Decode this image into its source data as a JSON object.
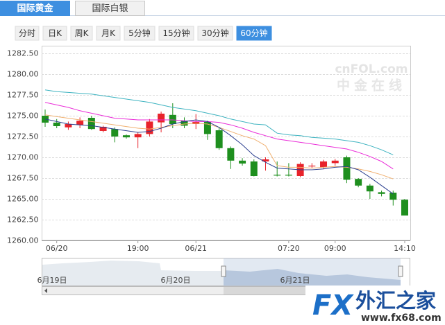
{
  "tabs": [
    {
      "label": "国际黄金",
      "active": true
    },
    {
      "label": "国际白银",
      "active": false
    }
  ],
  "periods": {
    "items": [
      "分时",
      "日K",
      "周K",
      "月K",
      "5分钟",
      "15分钟",
      "30分钟",
      "60分钟"
    ],
    "active": 7
  },
  "chart_data": {
    "type": "candlestick",
    "categories": [
      null,
      "06/20",
      null,
      null,
      null,
      null,
      null,
      null,
      "19:00",
      null,
      null,
      null,
      null,
      "06/21",
      null,
      null,
      null,
      null,
      null,
      null,
      null,
      "07:20",
      null,
      null,
      null,
      "09:00",
      null,
      null,
      null,
      null,
      null,
      "14:10"
    ],
    "open": [
      1275.0,
      1274.17,
      1273.6,
      1273.9,
      1274.75,
      1273.17,
      1273.4,
      1272.65,
      1272.4,
      1272.8,
      1274.2,
      1275.1,
      1274.4,
      1274.0,
      1274.25,
      1273.25,
      1271.1,
      1269.6,
      1269.5,
      1269.5,
      1267.9,
      1267.9,
      1267.75,
      1268.9,
      1268.8,
      1269.3,
      1270.0,
      1267.4,
      1266.6,
      1265.8,
      1265.75,
      1264.9
    ],
    "high": [
      1275.75,
      1274.6,
      1274.3,
      1274.8,
      1275.0,
      1273.8,
      1273.6,
      1272.75,
      1273.0,
      1274.6,
      1275.5,
      1276.5,
      1274.8,
      1275.2,
      1274.4,
      1273.6,
      1271.3,
      1269.9,
      1269.75,
      1270.0,
      1269.5,
      1269.3,
      1269.4,
      1269.3,
      1269.7,
      1269.8,
      1270.2,
      1267.5,
      1266.8,
      1266.0,
      1266.0,
      1265.0
    ],
    "low": [
      1273.67,
      1273.5,
      1273.3,
      1273.5,
      1273.3,
      1273.0,
      1271.8,
      1272.25,
      1271.1,
      1272.5,
      1273.0,
      1273.5,
      1273.5,
      1273.4,
      1272.1,
      1270.9,
      1268.6,
      1269.0,
      1267.7,
      1268.4,
      1267.7,
      1267.7,
      1267.6,
      1268.7,
      1268.6,
      1269.0,
      1266.9,
      1266.4,
      1265.0,
      1265.3,
      1264.2,
      1263.0
    ],
    "close": [
      1274.17,
      1273.75,
      1274.0,
      1274.4,
      1273.4,
      1273.67,
      1272.5,
      1272.4,
      1272.8,
      1274.3,
      1275.25,
      1274.0,
      1273.8,
      1274.25,
      1272.8,
      1271.1,
      1269.6,
      1269.25,
      1267.75,
      1269.75,
      1267.8,
      1267.8,
      1269.2,
      1269.0,
      1269.5,
      1269.6,
      1267.3,
      1266.6,
      1265.9,
      1265.6,
      1264.9,
      1263.0
    ],
    "up_color": "#e8232b",
    "down_color": "#1e8f1e",
    "lines": [
      {
        "color": "#3db3c0",
        "values": [
          1278.1,
          1277.9,
          1277.8,
          1277.7,
          1277.6,
          1277.4,
          1277.2,
          1277.0,
          1276.8,
          1276.6,
          1276.3,
          1276.0,
          1275.8,
          1275.6,
          1275.3,
          1275.0,
          1274.6,
          1274.3,
          1274.0,
          1273.9,
          1272.9,
          1272.7,
          1272.6,
          1272.4,
          1272.3,
          1272.2,
          1272.0,
          1271.8,
          1271.4,
          1270.9,
          1270.3,
          null
        ]
      },
      {
        "color": "#ea2bd8",
        "values": [
          1276.6,
          1276.3,
          1276.0,
          1275.6,
          1275.3,
          1275.0,
          1274.7,
          1274.6,
          1274.5,
          1274.5,
          1274.5,
          1274.5,
          1274.4,
          1274.3,
          1274.3,
          1274.2,
          1273.9,
          1273.5,
          1273.0,
          1272.6,
          1272.2,
          1272.0,
          1271.8,
          1271.6,
          1271.4,
          1271.2,
          1271.0,
          1270.6,
          1270.1,
          1269.5,
          1268.6,
          null
        ]
      },
      {
        "color": "#f0b070",
        "values": [
          1275.1,
          1274.9,
          1274.7,
          1274.5,
          1274.3,
          1274.1,
          1273.9,
          1273.7,
          1273.5,
          1273.4,
          1273.6,
          1273.8,
          1274.0,
          1274.1,
          1274.0,
          1273.6,
          1273.1,
          1272.6,
          1272.2,
          1271.4,
          1269.0,
          1268.8,
          1268.8,
          1268.7,
          1268.8,
          1268.9,
          1268.8,
          1268.6,
          1268.3,
          1267.9,
          1267.4,
          null
        ]
      },
      {
        "color": "#2b3f8f",
        "values": [
          1274.6,
          1274.3,
          1274.0,
          1273.9,
          1273.8,
          1273.6,
          1273.4,
          1273.2,
          1273.0,
          1273.1,
          1273.5,
          1274.0,
          1274.3,
          1274.5,
          1274.3,
          1273.6,
          1272.6,
          1271.5,
          1270.2,
          1269.4,
          1268.7,
          1268.6,
          1268.5,
          1268.5,
          1268.6,
          1268.8,
          1268.9,
          1268.5,
          1267.6,
          1266.6,
          1265.6,
          null
        ]
      }
    ],
    "ylim": [
      1260,
      1282.5
    ],
    "yticks": [
      {
        "value": 1260,
        "label": "1260.00"
      },
      {
        "value": 1262.5,
        "label": "1262.50"
      },
      {
        "value": 1265,
        "label": "1265.00"
      },
      {
        "value": 1267.5,
        "label": "1267.50"
      },
      {
        "value": 1270,
        "label": "1270.00"
      },
      {
        "value": 1272.5,
        "label": "1272.50"
      },
      {
        "value": 1275,
        "label": "1275.00"
      },
      {
        "value": 1277.5,
        "label": "1277.50"
      },
      {
        "value": 1280,
        "label": "1280.00"
      },
      {
        "value": 1282.5,
        "label": "1282.50"
      }
    ],
    "grid": true
  },
  "navigator": {
    "labels": [
      "6月19日",
      "6月20日",
      "6月21日"
    ]
  },
  "watermark": {
    "brand": "cnFOL.com",
    "sub": "中金在线"
  },
  "logo": {
    "mark": "FX",
    "name": "外汇之家",
    "url": "www.fx68.com"
  }
}
